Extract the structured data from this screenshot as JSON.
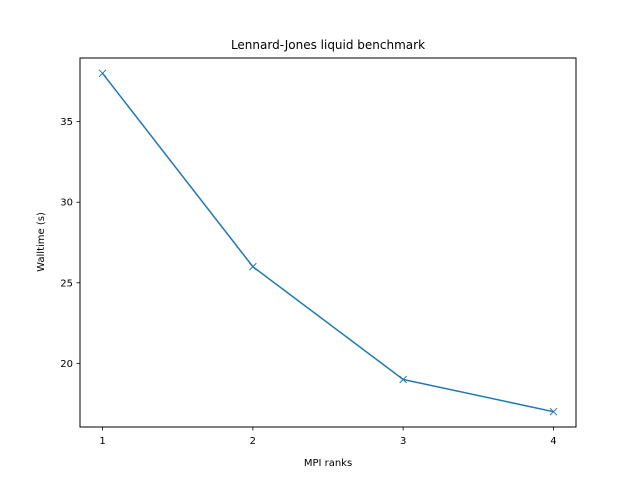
{
  "chart_data": {
    "type": "line",
    "title": "Lennard-Jones liquid benchmark",
    "xlabel": "MPI ranks",
    "ylabel": "Walltime (s)",
    "x": [
      1,
      2,
      3,
      4
    ],
    "series": [
      {
        "name": "Walltime",
        "values": [
          38,
          26,
          19,
          17
        ],
        "color": "#1f77b4",
        "marker": "x"
      }
    ],
    "xticks": [
      "1",
      "2",
      "3",
      "4"
    ],
    "yticks": [
      "20",
      "25",
      "30",
      "35"
    ],
    "xlim": [
      0.85,
      4.15
    ],
    "ylim": [
      16.05,
      38.95
    ],
    "grid": false,
    "legend": null
  }
}
